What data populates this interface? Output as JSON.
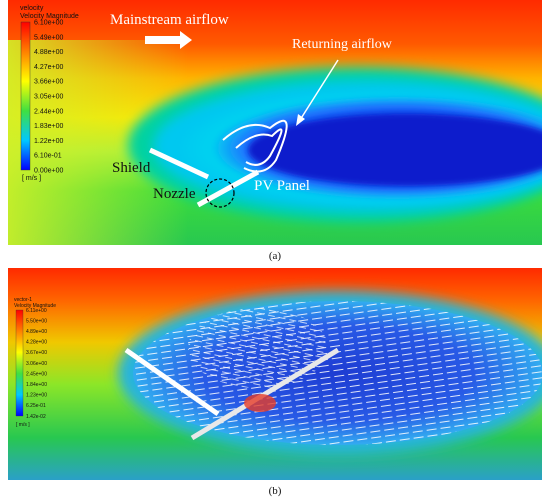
{
  "panel_a": {
    "legend": {
      "header_line1": "velocity",
      "header_line2": "Velocity Magnitude",
      "ticks": [
        "6.10e+00",
        "5.49e+00",
        "4.88e+00",
        "4.27e+00",
        "3.66e+00",
        "3.05e+00",
        "2.44e+00",
        "1.83e+00",
        "1.22e+00",
        "6.10e-01",
        "0.00e+00"
      ],
      "unit": "[ m/s ]"
    },
    "labels": {
      "mainstream": "Mainstream airflow",
      "returning": "Returning airflow",
      "shield": "Shield",
      "nozzle": "Nozzle",
      "pv_panel": "PV Panel"
    },
    "caption": "(a)"
  },
  "panel_b": {
    "legend": {
      "header_line1": "vector-1",
      "header_line2": "Velocity Magnitude",
      "ticks": [
        "6.11e+00",
        "5.50e+00",
        "4.89e+00",
        "4.28e+00",
        "3.67e+00",
        "3.06e+00",
        "2.45e+00",
        "1.84e+00",
        "1.23e+00",
        "6.25e-01",
        "1.42e-02"
      ],
      "unit": "[ m/s ]"
    },
    "caption": "(b)"
  },
  "colors": {
    "high": "#ff2a00",
    "orange": "#ff8c00",
    "yellow": "#ffe600",
    "green": "#3cdc3c",
    "cyan": "#00d2f0",
    "blue": "#1e64ff",
    "deep_blue": "#0a1ecc"
  }
}
